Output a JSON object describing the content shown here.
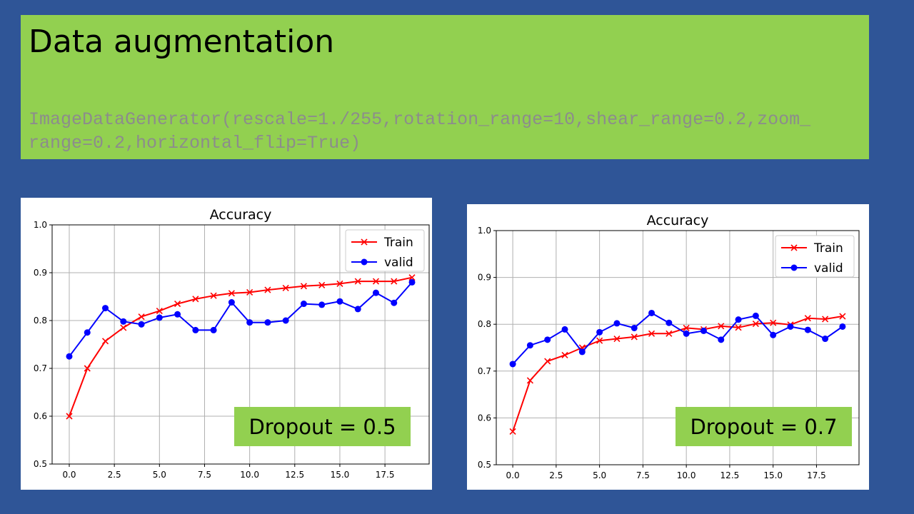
{
  "slide": {
    "title": "Data augmentation",
    "code_lines": [
      "ImageDataGenerator(rescale=1./255,rotation_range=10,shear_range=0.2,zoom_",
      "range=0.2,horizontal_flip=True)"
    ]
  },
  "colors": {
    "background": "#2F5597",
    "accent": "#92D050",
    "train": "#ff0000",
    "valid": "#0000ff"
  },
  "badges": [
    "Dropout = 0.5",
    "Dropout = 0.7"
  ],
  "chart_data": [
    {
      "type": "line",
      "title": "Accuracy",
      "xlim": [
        -0.95,
        19.95
      ],
      "ylim": [
        0.5,
        1.0
      ],
      "xticks": [
        0.0,
        2.5,
        5.0,
        7.5,
        10.0,
        12.5,
        15.0,
        17.5
      ],
      "xtick_labels": [
        "0.0",
        "2.5",
        "5.0",
        "7.5",
        "10.0",
        "12.5",
        "15.0",
        "17.5"
      ],
      "yticks": [
        0.5,
        0.6,
        0.7,
        0.8,
        0.9,
        1.0
      ],
      "ytick_labels": [
        "0.5",
        "0.6",
        "0.7",
        "0.8",
        "0.9",
        "1.0"
      ],
      "grid": true,
      "legend": "top-right",
      "x": [
        0,
        1,
        2,
        3,
        4,
        5,
        6,
        7,
        8,
        9,
        10,
        11,
        12,
        13,
        14,
        15,
        16,
        17,
        18,
        19
      ],
      "series": [
        {
          "name": "Train",
          "marker": "x",
          "values": [
            0.6,
            0.7,
            0.757,
            0.785,
            0.808,
            0.82,
            0.835,
            0.845,
            0.852,
            0.857,
            0.859,
            0.864,
            0.868,
            0.872,
            0.874,
            0.877,
            0.882,
            0.882,
            0.882,
            0.89
          ]
        },
        {
          "name": "valid",
          "marker": "o",
          "values": [
            0.725,
            0.775,
            0.826,
            0.798,
            0.792,
            0.806,
            0.813,
            0.78,
            0.78,
            0.838,
            0.796,
            0.796,
            0.8,
            0.835,
            0.833,
            0.84,
            0.824,
            0.858,
            0.837,
            0.88
          ]
        }
      ]
    },
    {
      "type": "line",
      "title": "Accuracy",
      "xlim": [
        -0.95,
        19.95
      ],
      "ylim": [
        0.5,
        1.0
      ],
      "xticks": [
        0.0,
        2.5,
        5.0,
        7.5,
        10.0,
        12.5,
        15.0,
        17.5
      ],
      "xtick_labels": [
        "0.0",
        "2.5",
        "5.0",
        "7.5",
        "10.0",
        "12.5",
        "15.0",
        "17.5"
      ],
      "yticks": [
        0.5,
        0.6,
        0.7,
        0.8,
        0.9,
        1.0
      ],
      "ytick_labels": [
        "0.5",
        "0.6",
        "0.7",
        "0.8",
        "0.9",
        "1.0"
      ],
      "grid": true,
      "legend": "top-right",
      "x": [
        0,
        1,
        2,
        3,
        4,
        5,
        6,
        7,
        8,
        9,
        10,
        11,
        12,
        13,
        14,
        15,
        16,
        17,
        18,
        19
      ],
      "series": [
        {
          "name": "Train",
          "marker": "x",
          "values": [
            0.571,
            0.68,
            0.721,
            0.734,
            0.75,
            0.765,
            0.769,
            0.773,
            0.78,
            0.78,
            0.792,
            0.789,
            0.796,
            0.793,
            0.801,
            0.803,
            0.799,
            0.813,
            0.811,
            0.817
          ]
        },
        {
          "name": "valid",
          "marker": "o",
          "values": [
            0.715,
            0.755,
            0.767,
            0.789,
            0.741,
            0.783,
            0.802,
            0.792,
            0.824,
            0.803,
            0.78,
            0.786,
            0.767,
            0.81,
            0.818,
            0.777,
            0.795,
            0.788,
            0.769,
            0.795
          ]
        }
      ]
    }
  ]
}
